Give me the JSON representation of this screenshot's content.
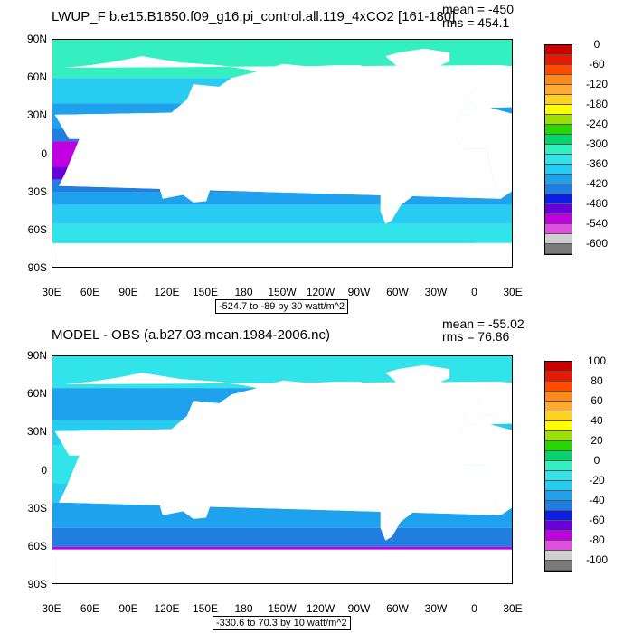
{
  "chart_data": [
    {
      "type": "heatmap",
      "title": "LWUP_F b.e15.B1850.f09_g16.pi_control.all.119_4xCO2 [161-180]",
      "mean_text": "mean = -450",
      "rms_text": "rms = 454.1",
      "range_text": "-524.7 to -89 by 30 watt/m^2",
      "x_tick_labels": [
        "30E",
        "60E",
        "90E",
        "120E",
        "150E",
        "180",
        "150W",
        "120W",
        "90W",
        "60W",
        "30W",
        "0",
        "30E"
      ],
      "y_tick_labels": [
        "90N",
        "60N",
        "30N",
        "0",
        "30S",
        "60S",
        "90S"
      ],
      "colorbar_labels": [
        "0",
        "-60",
        "-120",
        "-180",
        "-240",
        "-300",
        "-360",
        "-420",
        "-480",
        "-540",
        "-600"
      ],
      "colorbar_colors": [
        "#c80000",
        "#e61a00",
        "#ff4a00",
        "#ff8a1a",
        "#ffaa33",
        "#ffd21e",
        "#ffff00",
        "#9be000",
        "#2ad400",
        "#00d66b",
        "#34f0c0",
        "#30e4ea",
        "#28ccf0",
        "#1ea2ee",
        "#1f7ee0",
        "#0a1ee6",
        "#6a00d8",
        "#c000e0",
        "#e050e0",
        "#cfcfcf",
        "#7a7a7a"
      ],
      "zones": [
        {
          "lat": [
            60,
            90
          ],
          "color": "#34f0c0"
        },
        {
          "lat": [
            40,
            60
          ],
          "color": "#28ccf0"
        },
        {
          "lat": [
            20,
            40
          ],
          "color": "#1ea2ee"
        },
        {
          "lat": [
            10,
            20
          ],
          "color": "#1f7ee0"
        },
        {
          "lat": [
            -10,
            10
          ],
          "color": "#c000e0"
        },
        {
          "lat": [
            -20,
            -10
          ],
          "color": "#6a00d8"
        },
        {
          "lat": [
            -30,
            -20
          ],
          "color": "#1f7ee0"
        },
        {
          "lat": [
            -40,
            -30
          ],
          "color": "#1ea2ee"
        },
        {
          "lat": [
            -55,
            -40
          ],
          "color": "#28ccf0"
        },
        {
          "lat": [
            -70,
            -55
          ],
          "color": "#30e4ea"
        }
      ]
    },
    {
      "type": "heatmap",
      "title": "MODEL - OBS (a.b27.03.mean.1984-2006.nc)",
      "mean_text": "mean = -55.02",
      "rms_text": "rms = 76.86",
      "range_text": "-330.6 to 70.3 by 10 watt/m^2",
      "x_tick_labels": [
        "30E",
        "60E",
        "90E",
        "120E",
        "150E",
        "180",
        "150W",
        "120W",
        "90W",
        "60W",
        "30W",
        "0",
        "30E"
      ],
      "y_tick_labels": [
        "90N",
        "60N",
        "30N",
        "0",
        "30S",
        "60S",
        "90S"
      ],
      "colorbar_labels": [
        "100",
        "80",
        "60",
        "40",
        "20",
        "0",
        "-20",
        "-40",
        "-60",
        "-80",
        "-100"
      ],
      "colorbar_colors": [
        "#c80000",
        "#e61a00",
        "#ff4a00",
        "#ff8a1a",
        "#ffaa33",
        "#ffd21e",
        "#ffff00",
        "#9be000",
        "#2ad400",
        "#00d66b",
        "#34f0c0",
        "#30e4ea",
        "#28ccf0",
        "#1ea2ee",
        "#1f7ee0",
        "#0a1ee6",
        "#6a00d8",
        "#c000e0",
        "#e050e0",
        "#cfcfcf",
        "#7a7a7a"
      ],
      "zones": [
        {
          "lat": [
            65,
            90
          ],
          "color": "#30e4ea"
        },
        {
          "lat": [
            40,
            65
          ],
          "color": "#1ea2ee"
        },
        {
          "lat": [
            20,
            40
          ],
          "color": "#28ccf0"
        },
        {
          "lat": [
            -10,
            20
          ],
          "color": "#30e4ea"
        },
        {
          "lat": [
            -25,
            -10
          ],
          "color": "#28ccf0"
        },
        {
          "lat": [
            -45,
            -25
          ],
          "color": "#1ea2ee"
        },
        {
          "lat": [
            -60,
            -45
          ],
          "color": "#1f7ee0"
        },
        {
          "lat": [
            -62,
            -60
          ],
          "color": "#c000e0"
        }
      ]
    }
  ]
}
